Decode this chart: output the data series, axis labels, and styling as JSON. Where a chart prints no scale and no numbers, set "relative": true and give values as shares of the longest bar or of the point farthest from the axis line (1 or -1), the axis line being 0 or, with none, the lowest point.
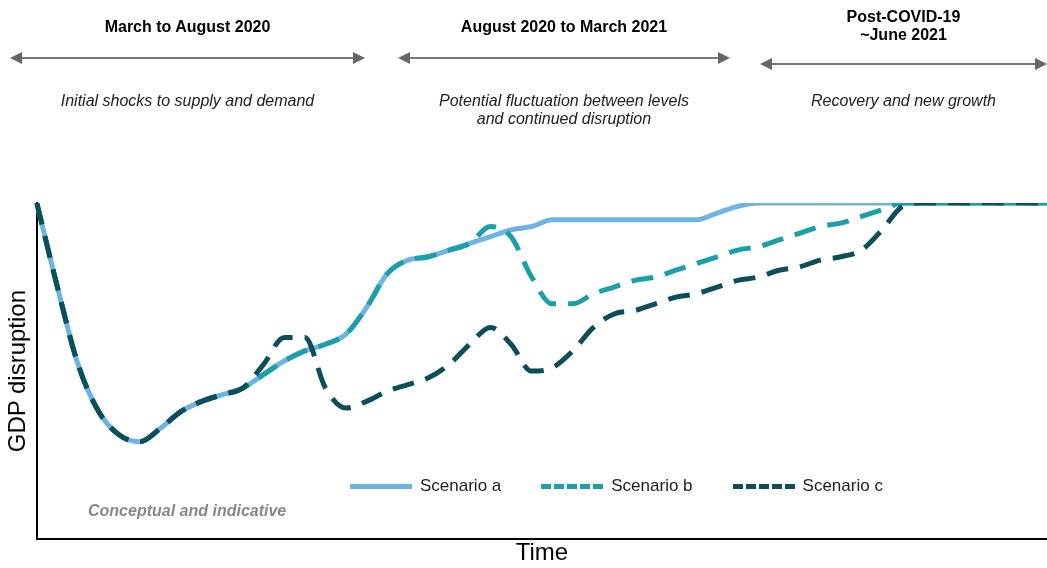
{
  "chart_data": {
    "type": "line",
    "relative": true,
    "xlabel": "Time",
    "ylabel": "GDP disruption",
    "legend": "bottom",
    "grid": false,
    "marker": "none",
    "annotations": [
      "March to August 2020",
      "August 2020 to March 2021",
      "Post-COVID-19\n~June 2021",
      "Initial shocks to supply and demand",
      "Potential fluctuation between levels\nand continued disruption",
      "Recovery and new growth",
      "Conceptual and indicative"
    ],
    "categories": [
      null,
      null,
      null,
      null,
      null,
      null,
      null,
      null,
      null,
      null,
      null,
      null,
      null,
      null,
      null,
      null,
      null,
      null,
      null,
      null,
      null,
      null,
      null,
      null,
      null,
      null,
      null,
      null,
      null,
      null,
      null,
      null,
      null,
      null,
      null,
      null,
      null,
      null,
      null,
      null,
      null,
      null,
      null,
      null,
      null,
      null,
      null,
      null,
      null,
      null
    ],
    "series": [
      {
        "name": "Scenario a",
        "color": "#6cb4e4",
        "line_style": "solid",
        "values": [
          1,
          0.75,
          0.52,
          0.38,
          0.31,
          0.29,
          0.33,
          0.38,
          0.41,
          0.43,
          0.45,
          0.49,
          0.53,
          0.56,
          0.58,
          0.61,
          0.69,
          0.79,
          0.83,
          0.84,
          0.86,
          0.88,
          0.9,
          0.92,
          0.93,
          0.95,
          0.95,
          0.95,
          0.95,
          0.95,
          0.95,
          0.95,
          0.95,
          0.97,
          0.99,
          1,
          1,
          1,
          1,
          1,
          1,
          1,
          1,
          1,
          1,
          1,
          1,
          1,
          1,
          1
        ]
      },
      {
        "name": "Scenario b",
        "color": "#1aa0a8",
        "line_style": "dashed",
        "values": [
          1,
          0.75,
          0.52,
          0.38,
          0.31,
          0.29,
          0.33,
          0.38,
          0.41,
          0.43,
          0.45,
          0.49,
          0.53,
          0.56,
          0.58,
          0.61,
          0.69,
          0.79,
          0.83,
          0.84,
          0.86,
          0.88,
          0.93,
          0.9,
          0.78,
          0.7,
          0.7,
          0.73,
          0.75,
          0.77,
          0.78,
          0.8,
          0.82,
          0.84,
          0.86,
          0.87,
          0.89,
          0.91,
          0.93,
          0.94,
          0.96,
          0.98,
          1,
          1,
          1,
          1,
          1,
          1,
          1,
          1
        ]
      },
      {
        "name": "Scenario c",
        "color": "#0c4e5a",
        "line_style": "dashed",
        "values": [
          1,
          0.75,
          0.52,
          0.38,
          0.31,
          0.29,
          0.33,
          0.38,
          0.41,
          0.43,
          0.45,
          0.52,
          0.6,
          0.6,
          0.45,
          0.39,
          0.41,
          0.44,
          0.46,
          0.48,
          0.52,
          0.58,
          0.63,
          0.58,
          0.5,
          0.51,
          0.56,
          0.63,
          0.67,
          0.68,
          0.7,
          0.72,
          0.73,
          0.75,
          0.77,
          0.78,
          0.8,
          0.81,
          0.83,
          0.84,
          0.86,
          0.92,
          0.99,
          1,
          1,
          1,
          1,
          1,
          1,
          1
        ]
      }
    ]
  }
}
